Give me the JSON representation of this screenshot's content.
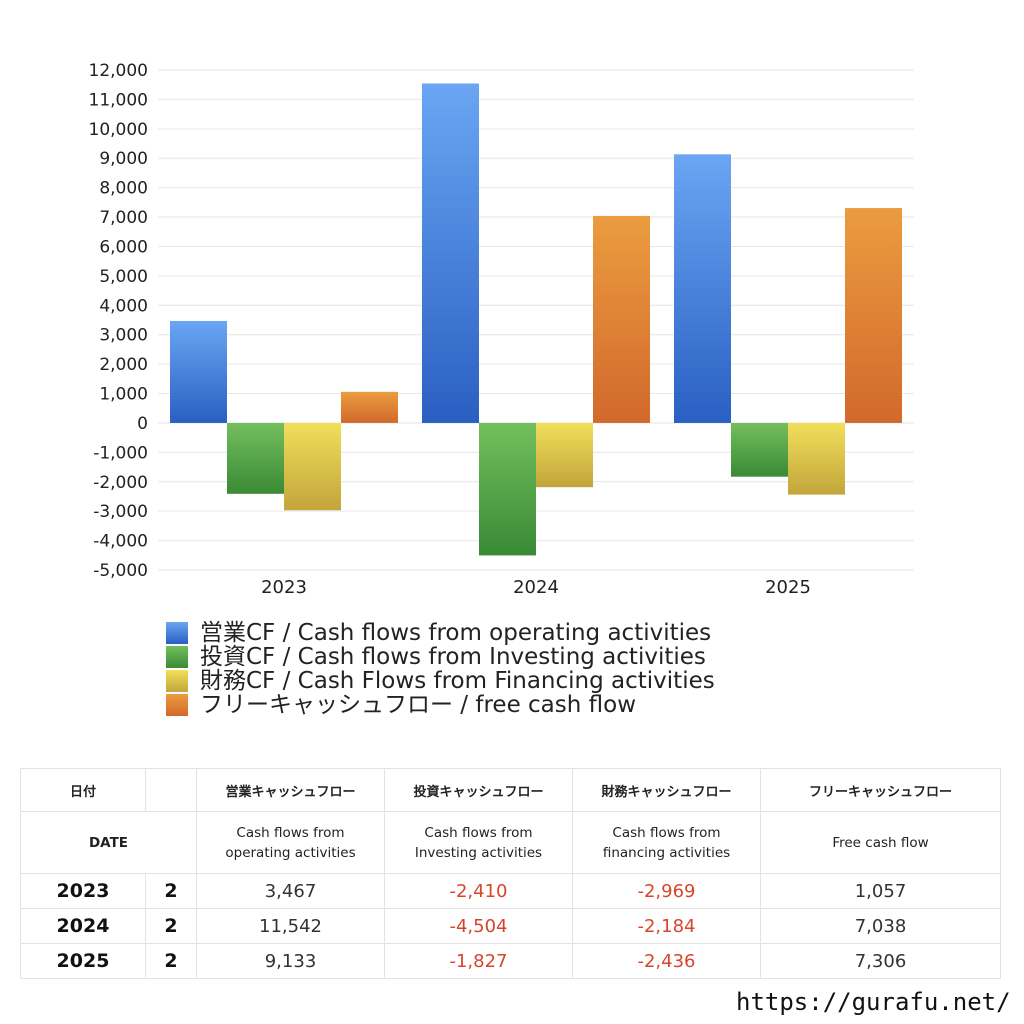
{
  "chart_data": {
    "type": "bar",
    "categories": [
      "2023",
      "2024",
      "2025"
    ],
    "series": [
      {
        "name": "営業CF / Cash flows from operating activities",
        "values": [
          3467,
          11542,
          9133
        ],
        "color_top": "#6aa6f3",
        "color_bottom": "#2a5fc2"
      },
      {
        "name": "投資CF / Cash flows from Investing activities",
        "values": [
          -2410,
          -4504,
          -1827
        ],
        "color_top": "#73bf5d",
        "color_bottom": "#3a8a36"
      },
      {
        "name": "財務CF / Cash Flows from Financing activities",
        "values": [
          -2969,
          -2184,
          -2436
        ],
        "color_top": "#f1df5a",
        "color_bottom": "#c2a53c"
      },
      {
        "name": "フリーキャッシュフロー / free cash flow",
        "values": [
          1057,
          7038,
          7306
        ],
        "color_top": "#eb9c3f",
        "color_bottom": "#d2692c"
      }
    ],
    "ylim": [
      -5000,
      12000
    ],
    "yticks": [
      12000,
      11000,
      10000,
      9000,
      8000,
      7000,
      6000,
      5000,
      4000,
      3000,
      2000,
      1000,
      0,
      -1000,
      -2000,
      -3000,
      -4000,
      -5000
    ],
    "ytick_labels": [
      "12,000",
      "11,000",
      "10,000",
      "9,000",
      "8,000",
      "7,000",
      "6,000",
      "5,000",
      "4,000",
      "3,000",
      "2,000",
      "1,000",
      "0",
      "-1,000",
      "-2,000",
      "-3,000",
      "-4,000",
      "-5,000"
    ],
    "grid": true,
    "legend_position": "bottom"
  },
  "table": {
    "header_jp": [
      "日付",
      "",
      "営業キャッシュフロー",
      "投資キャッシュフロー",
      "財務キャッシュフロー",
      "フリーキャッシュフロー"
    ],
    "header_en": {
      "date": "DATE",
      "operating_1": "Cash flows from",
      "operating_2": "operating activities",
      "investing_1": "Cash flows from",
      "investing_2": "Investing activities",
      "financing_1": "Cash flows from",
      "financing_2": "financing activities",
      "free": "Free cash flow"
    },
    "rows": [
      {
        "year": "2023",
        "month": "2",
        "operating": "3,467",
        "investing": "-2,410",
        "financing": "-2,969",
        "free": "1,057"
      },
      {
        "year": "2024",
        "month": "2",
        "operating": "11,542",
        "investing": "-4,504",
        "financing": "-2,184",
        "free": "7,038"
      },
      {
        "year": "2025",
        "month": "2",
        "operating": "9,133",
        "investing": "-1,827",
        "financing": "-2,436",
        "free": "7,306"
      }
    ],
    "negative_color": "#d9452b"
  },
  "footer": {
    "url": "https://gurafu.net/"
  }
}
